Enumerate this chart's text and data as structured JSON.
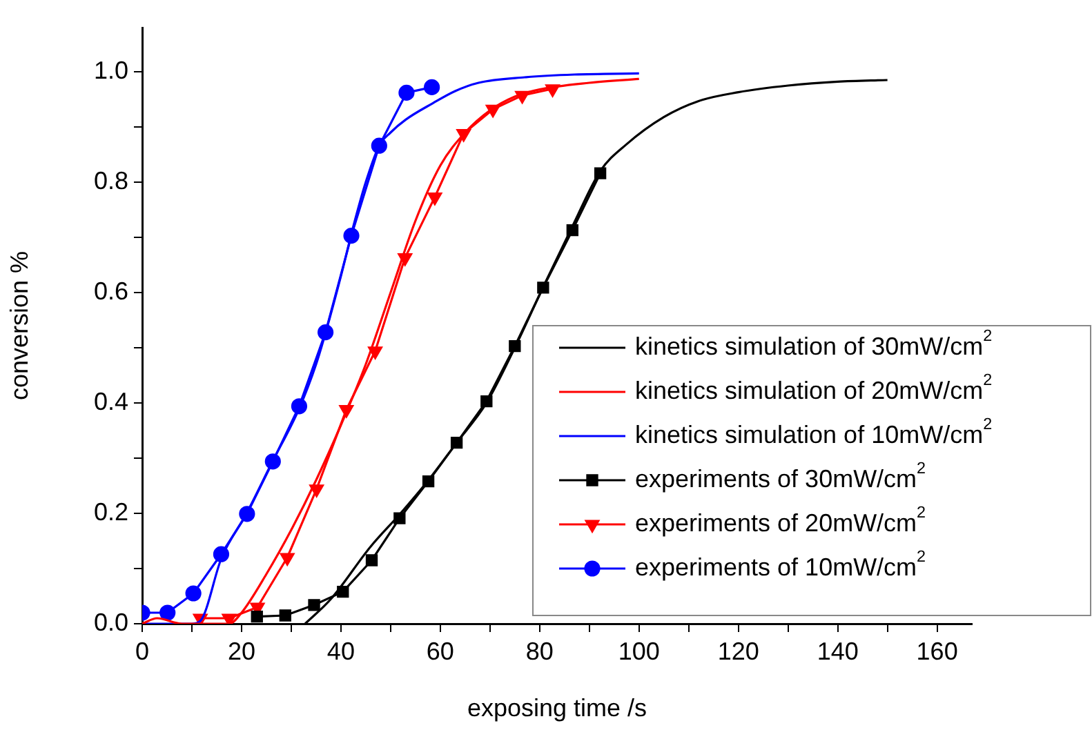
{
  "chart_data": {
    "type": "line",
    "xlabel": "exposing time /s",
    "ylabel": "conversion %",
    "xlim": [
      0,
      167
    ],
    "ylim": [
      0,
      1.08
    ],
    "xticks": [
      0,
      {
        "value": 10,
        "label": null
      },
      20,
      {
        "value": 30,
        "label": null
      },
      40,
      {
        "value": 50,
        "label": null
      },
      60,
      {
        "value": 70,
        "label": null
      },
      80,
      {
        "value": 90,
        "label": null
      },
      100,
      {
        "value": 110,
        "label": null
      },
      120,
      {
        "value": 130,
        "label": null
      },
      140,
      {
        "value": 150,
        "label": null
      },
      160
    ],
    "yticks": [
      {
        "value": 0,
        "label": "0.0"
      },
      {
        "value": 0.1,
        "label": null
      },
      {
        "value": 0.2,
        "label": "0.2"
      },
      {
        "value": 0.3,
        "label": null
      },
      {
        "value": 0.4,
        "label": "0.4"
      },
      {
        "value": 0.5,
        "label": null
      },
      {
        "value": 0.6,
        "label": "0.6"
      },
      {
        "value": 0.7,
        "label": null
      },
      {
        "value": 0.8,
        "label": "0.8"
      },
      {
        "value": 0.9,
        "label": null
      },
      {
        "value": 1.0,
        "label": "1.0"
      }
    ],
    "grid": false,
    "legend": "bottom right",
    "line_style": "solid",
    "series": [
      {
        "name": "kinetics simulation of 30mW/cm$^{2}$",
        "color": "#000000",
        "marker": "none",
        "x": [
          32.8,
          38,
          46,
          52,
          57.6,
          63.3,
          69.3,
          75,
          80.7,
          86.6,
          92.2,
          97.4,
          105,
          112,
          120,
          130,
          140,
          150
        ],
        "values": [
          0,
          0.045,
          0.14,
          0.2,
          0.26,
          0.328,
          0.4,
          0.5,
          0.61,
          0.72,
          0.82,
          0.868,
          0.918,
          0.947,
          0.963,
          0.975,
          0.982,
          0.985
        ]
      },
      {
        "name": "kinetics simulation of 20mW/cm$^{2}$",
        "color": "#ff0000",
        "marker": "none",
        "x": [
          0,
          3,
          8,
          17.5,
          20,
          25,
          30,
          35,
          40,
          45,
          50,
          55,
          60,
          65,
          70,
          75,
          80,
          90,
          100
        ],
        "values": [
          0,
          0.01,
          0,
          0,
          0.02,
          0.09,
          0.17,
          0.26,
          0.36,
          0.47,
          0.6,
          0.73,
          0.83,
          0.89,
          0.93,
          0.955,
          0.968,
          0.98,
          0.987
        ]
      },
      {
        "name": "kinetics simulation of 10mW/cm$^{2}$",
        "color": "#0000ff",
        "marker": "none",
        "x": [
          0,
          10,
          11.7,
          16,
          21,
          26,
          31.6,
          35,
          37,
          40,
          42.5,
          45,
          47.7,
          50,
          53,
          58.5,
          63,
          67.7,
          77,
          87,
          100
        ],
        "values": [
          0,
          0,
          0.005,
          0.12,
          0.2,
          0.29,
          0.39,
          0.47,
          0.53,
          0.63,
          0.72,
          0.8,
          0.866,
          0.89,
          0.913,
          0.943,
          0.965,
          0.98,
          0.99,
          0.995,
          0.997
        ]
      },
      {
        "name": "experiments of 30mW/cm$^{2}$",
        "color": "#000000",
        "marker": "square",
        "x": [
          23.1,
          28.8,
          34.6,
          40.4,
          46.2,
          51.8,
          57.6,
          63.3,
          69.3,
          75,
          80.7,
          86.6,
          92.2
        ],
        "values": [
          0.013,
          0.015,
          0.034,
          0.058,
          0.115,
          0.191,
          0.258,
          0.328,
          0.403,
          0.503,
          0.609,
          0.713,
          0.816
        ]
      },
      {
        "name": "experiments of 20mW/cm$^{2}$",
        "color": "#ff0000",
        "marker": "triangle",
        "x": [
          11.7,
          17.5,
          23.2,
          29.2,
          35.1,
          41.1,
          46.9,
          52.9,
          58.9,
          64.7,
          70.6,
          76.5,
          82.6
        ],
        "values": [
          0.01,
          0.01,
          0.03,
          0.12,
          0.244,
          0.388,
          0.494,
          0.663,
          0.773,
          0.888,
          0.932,
          0.957,
          0.969
        ]
      },
      {
        "name": "experiments of 10mW/cm$^{2}$",
        "color": "#0000ff",
        "marker": "circle",
        "x": [
          0,
          5.1,
          10.3,
          15.9,
          21.1,
          26.3,
          31.6,
          36.9,
          42.1,
          47.7,
          53.2,
          58.3
        ],
        "values": [
          0.02,
          0.02,
          0.055,
          0.126,
          0.199,
          0.294,
          0.394,
          0.528,
          0.703,
          0.866,
          0.962,
          0.972
        ]
      }
    ]
  }
}
